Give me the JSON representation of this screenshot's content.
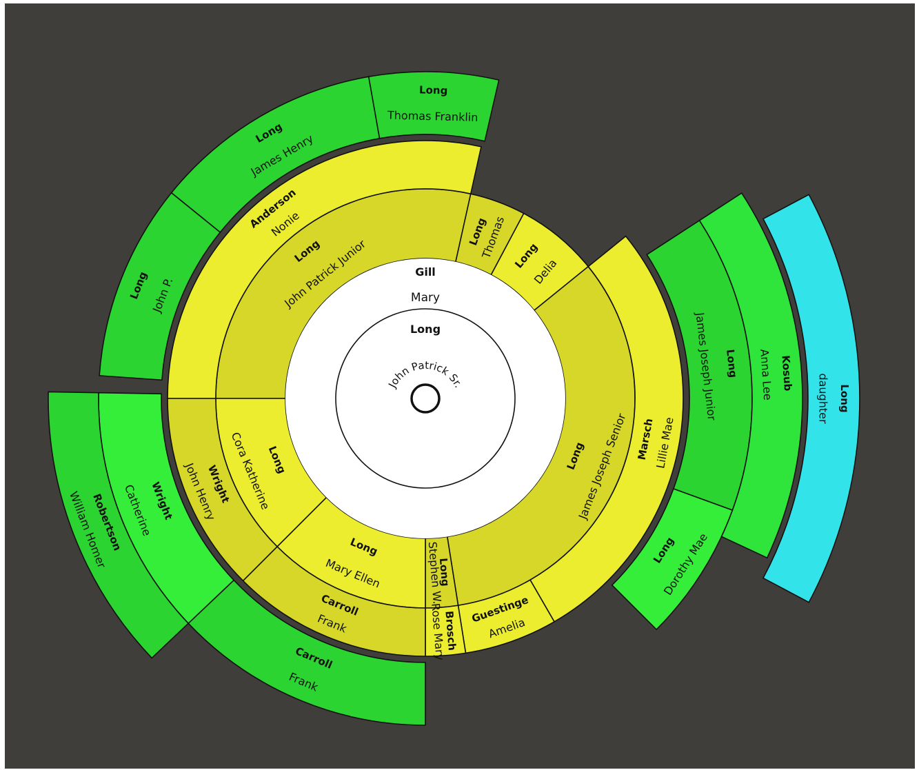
{
  "colors": {
    "background": "#3f3e3a",
    "white": "#ffffff",
    "yellow_dark": "#d7d72a",
    "yellow_light": "#ececb2",
    "yellow_bright": "#eced2e",
    "green_dark": "#2bd431",
    "green_mid": "#2fe43a",
    "green_bright": "#35ee3a",
    "cyan": "#32e4ea"
  },
  "root": {
    "surname": "Long",
    "given": "John Patrick Sr."
  },
  "spouse": {
    "surname": "Gill",
    "given": "Mary"
  },
  "segments": [
    {
      "id": "john-patrick-junior",
      "ring": 1,
      "surname": "Long",
      "given": "John Patrick Junior",
      "color": "yellow_dark"
    },
    {
      "id": "thomas",
      "ring": 1,
      "surname": "Long",
      "given": "Thomas",
      "color": "yellow_dark"
    },
    {
      "id": "delia",
      "ring": 1,
      "surname": "Long",
      "given": "Delia",
      "color": "yellow_bright"
    },
    {
      "id": "james-joseph-senior",
      "ring": 1,
      "surname": "Long",
      "given": "James Joseph Senior",
      "color": "yellow_dark"
    },
    {
      "id": "stephen-w",
      "ring": 1,
      "surname": "Long",
      "given": "Stephen W.",
      "color": "yellow_dark"
    },
    {
      "id": "mary-ellen",
      "ring": 1,
      "surname": "Long",
      "given": "Mary Ellen",
      "color": "yellow_bright"
    },
    {
      "id": "cora-katherine",
      "ring": 1,
      "surname": "Long",
      "given": "Cora Katherine",
      "color": "yellow_bright"
    },
    {
      "id": "nonie",
      "ring": 2,
      "surname": "Anderson",
      "given": "Nonie",
      "color": "yellow_bright"
    },
    {
      "id": "lillie-mae",
      "ring": 2,
      "surname": "Marsch",
      "given": "Lillie Mae",
      "color": "yellow_bright"
    },
    {
      "id": "amelia",
      "ring": 2,
      "surname": "Guestinge",
      "given": "Amelia",
      "color": "yellow_bright"
    },
    {
      "id": "rose-mary",
      "ring": 2,
      "surname": "Brosch",
      "given": "Rose Mary",
      "color": "yellow_bright"
    },
    {
      "id": "frank-inner",
      "ring": 2,
      "surname": "Carroll",
      "given": "Frank",
      "color": "yellow_dark"
    },
    {
      "id": "john-henry",
      "ring": 2,
      "surname": "Wright",
      "given": "John Henry",
      "color": "yellow_dark"
    },
    {
      "id": "thomas-franklin",
      "ring": 3,
      "surname": "Long",
      "given": "Thomas Franklin",
      "color": "green_dark"
    },
    {
      "id": "james-henry",
      "ring": 3,
      "surname": "Long",
      "given": "James Henry",
      "color": "green_dark"
    },
    {
      "id": "john-p",
      "ring": 3,
      "surname": "Long",
      "given": "John P.",
      "color": "green_dark"
    },
    {
      "id": "james-joseph-junior",
      "ring": 3,
      "surname": "Long",
      "given": "James Joseph Junior",
      "color": "green_dark"
    },
    {
      "id": "dorothy-mae",
      "ring": 3,
      "surname": "Long",
      "given": "Dorothy Mae",
      "color": "green_bright"
    },
    {
      "id": "frank-outer",
      "ring": 3,
      "surname": "Carroll",
      "given": "Frank",
      "color": "green_dark"
    },
    {
      "id": "catherine",
      "ring": 3,
      "surname": "Wright",
      "given": "Catherine",
      "color": "green_bright"
    },
    {
      "id": "anna-lee",
      "ring": 4,
      "surname": "Kosub",
      "given": "Anna Lee",
      "color": "green_mid"
    },
    {
      "id": "william-homer",
      "ring": 4,
      "surname": "Robertson",
      "given": "William Homer",
      "color": "green_dark"
    },
    {
      "id": "daughter",
      "ring": 5,
      "surname": "Long",
      "given": "daughter",
      "color": "cyan"
    }
  ]
}
